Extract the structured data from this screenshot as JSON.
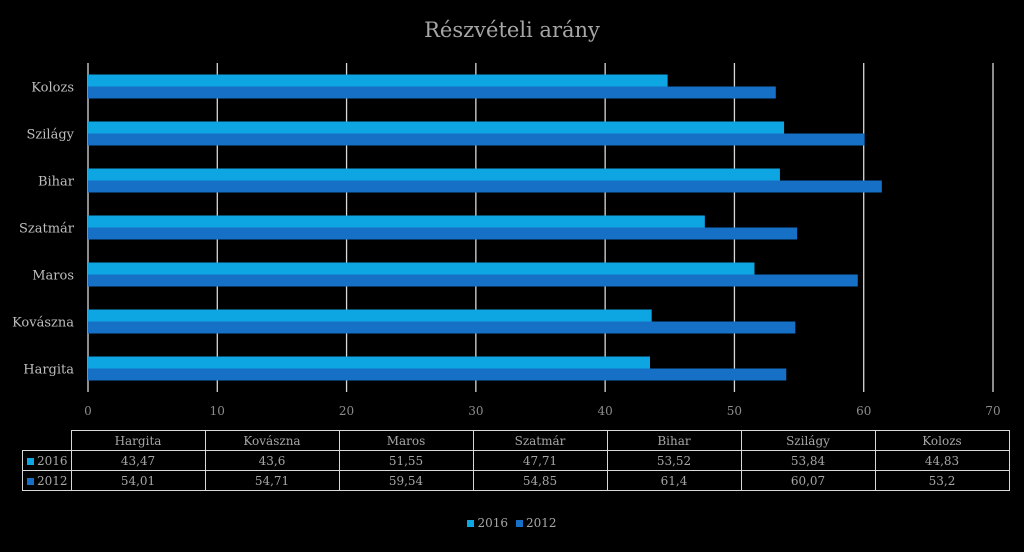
{
  "chart_data": {
    "type": "bar",
    "orientation": "horizontal",
    "title": "Részvételi arány",
    "categories": [
      "Hargita",
      "Kovászna",
      "Maros",
      "Szatmár",
      "Bihar",
      "Szilágy",
      "Kolozs"
    ],
    "series": [
      {
        "name": "2016",
        "color": "#0ea5e3",
        "values": [
          43.47,
          43.6,
          51.55,
          47.71,
          53.52,
          53.84,
          44.83
        ],
        "labels": [
          "43,47",
          "43,6",
          "51,55",
          "47,71",
          "53,52",
          "53,84",
          "44,83"
        ]
      },
      {
        "name": "2012",
        "color": "#1570c6",
        "values": [
          54.01,
          54.71,
          59.54,
          54.85,
          61.4,
          60.07,
          53.2
        ],
        "labels": [
          "54,01",
          "54,71",
          "59,54",
          "54,85",
          "61,4",
          "60,07",
          "53,2"
        ]
      }
    ],
    "xlim": [
      0,
      70
    ],
    "xticks": [
      "0",
      "10",
      "20",
      "30",
      "40",
      "50",
      "60",
      "70"
    ],
    "grid": true,
    "legend": "bottom",
    "data_table": true
  }
}
